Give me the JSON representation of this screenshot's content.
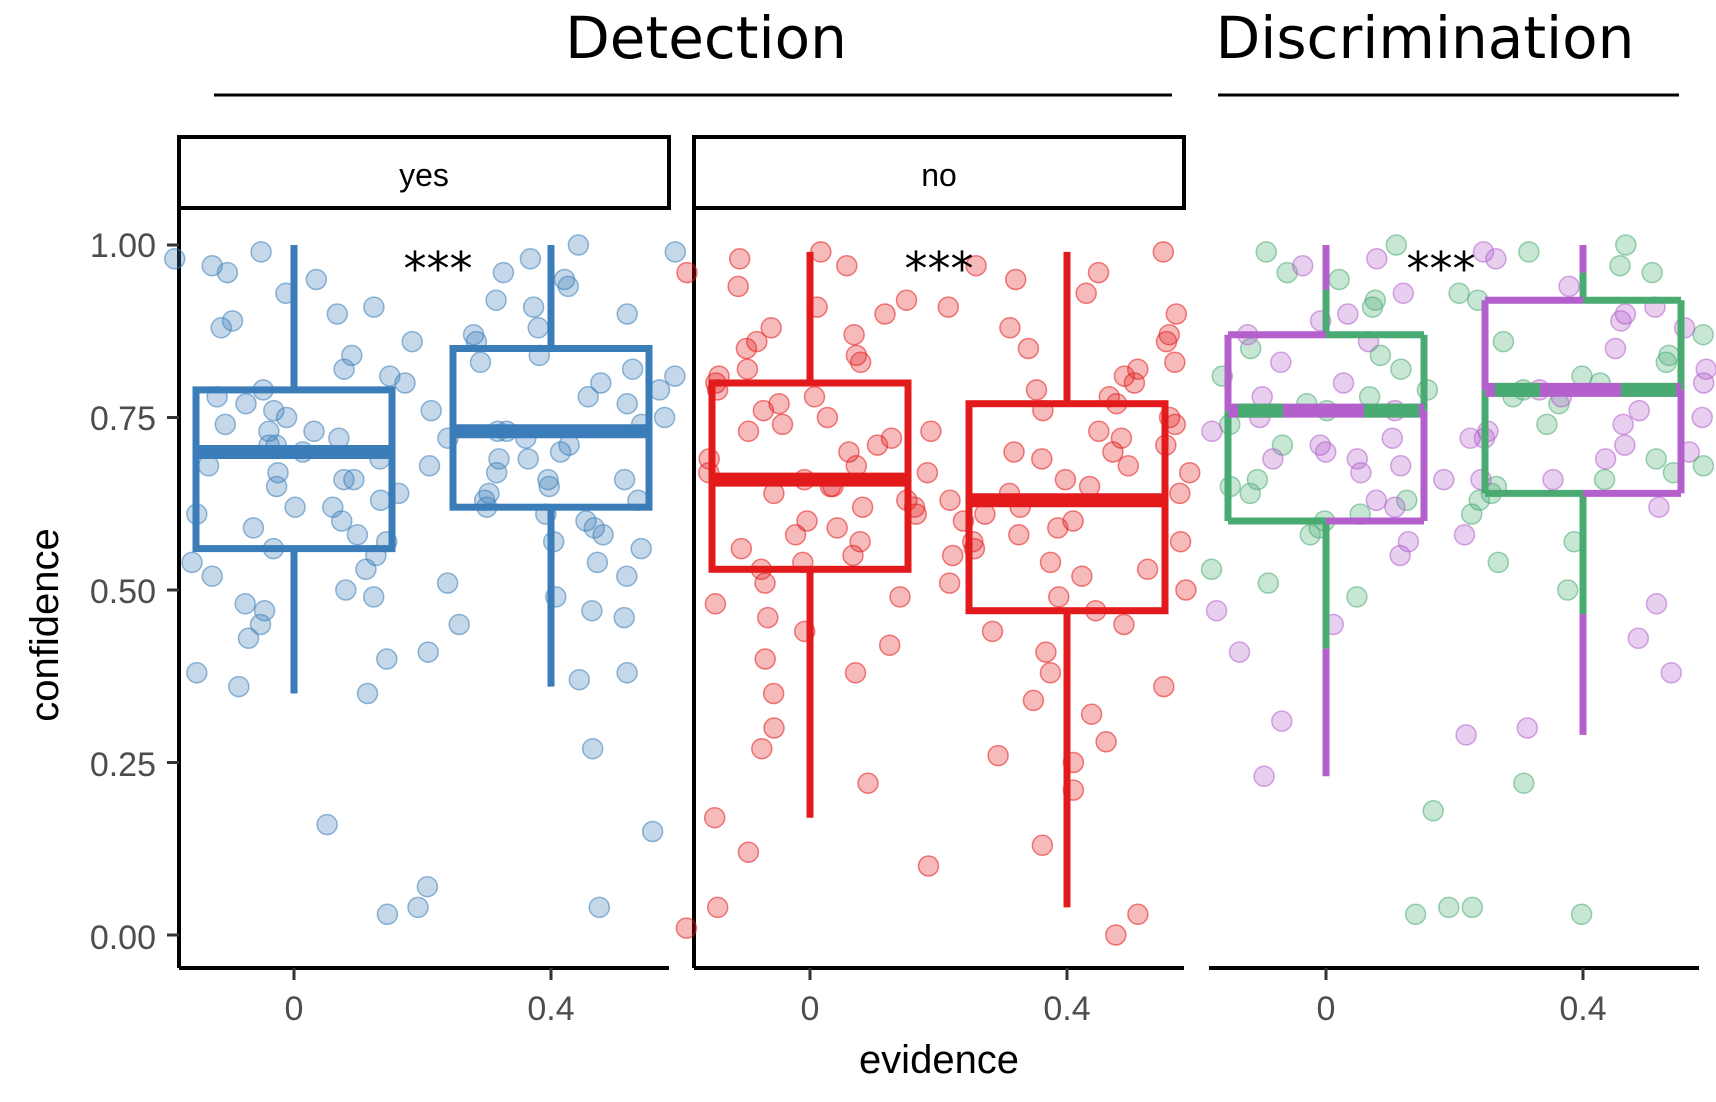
{
  "headers": {
    "detection": "Detection",
    "discrimination": "Discrimination"
  },
  "axes": {
    "y_title": "confidence",
    "x_title": "evidence",
    "y_ticks": [
      "0.00",
      "0.25",
      "0.50",
      "0.75",
      "1.00"
    ],
    "x_ticks": [
      "0",
      "0.4"
    ]
  },
  "colors": {
    "yes": "#3a7db8",
    "no": "#e31a1c",
    "disc_green": "#4aab72",
    "disc_purple": "#b35fcc"
  },
  "chart_data": {
    "type": "box",
    "ylim": [
      0,
      1
    ],
    "grid": false,
    "significance": "***",
    "panels": [
      {
        "group": "Detection",
        "strip": "yes",
        "color_key": "yes",
        "significance": "***",
        "boxes": [
          {
            "x": "0",
            "q1": 0.56,
            "median": 0.7,
            "q3": 0.79,
            "whisker_low": 0.35,
            "whisker_high": 1.0
          },
          {
            "x": "0.4",
            "q1": 0.62,
            "median": 0.73,
            "q3": 0.85,
            "whisker_low": 0.36,
            "whisker_high": 1.0
          }
        ],
        "points": [
          [
            0.62,
            0.48,
            0.16,
            0.04,
            0.72,
            0.9,
            0.97,
            0.81,
            0.5,
            0.55,
            0.66,
            0.59,
            0.35,
            0.78,
            0.73,
            0.96,
            0.88,
            0.53,
            0.4,
            0.69,
            0.61,
            0.75,
            0.84,
            0.45,
            0.36,
            0.99,
            0.64,
            0.57,
            0.76,
            0.71,
            0.91,
            0.52,
            0.68,
            0.43,
            0.79,
            0.62,
            0.86,
            0.93,
            0.58,
            0.74,
            0.67,
            0.03,
            0.49,
            0.77,
            0.7,
            0.63,
            0.82,
            0.38,
            0.95,
            0.54,
            0.6,
            0.73,
            0.66,
            0.89,
            0.47,
            0.71,
            0.56,
            0.8,
            0.65,
            0.98
          ],
          [
            0.64,
            0.45,
            0.27,
            0.07,
            0.73,
            0.92,
            0.98,
            0.83,
            0.52,
            0.61,
            0.7,
            0.63,
            0.37,
            0.8,
            0.76,
            0.95,
            0.88,
            0.57,
            0.47,
            0.69,
            0.66,
            0.75,
            0.86,
            0.49,
            0.15,
            1.0,
            0.68,
            0.6,
            0.78,
            0.72,
            0.9,
            0.54,
            0.67,
            0.46,
            0.81,
            0.65,
            0.87,
            0.94,
            0.59,
            0.74,
            0.71,
            0.04,
            0.51,
            0.79,
            0.72,
            0.62,
            0.84,
            0.38,
            0.96,
            0.56,
            0.63,
            0.77,
            0.69,
            0.91,
            0.41,
            0.73,
            0.58,
            0.82,
            0.66,
            0.99
          ]
        ]
      },
      {
        "group": "Detection",
        "strip": "no",
        "color_key": "no",
        "significance": "***",
        "boxes": [
          {
            "x": "0",
            "q1": 0.53,
            "median": 0.66,
            "q3": 0.8,
            "whisker_low": 0.17,
            "whisker_high": 0.99
          },
          {
            "x": "0.4",
            "q1": 0.47,
            "median": 0.63,
            "q3": 0.77,
            "whisker_low": 0.04,
            "whisker_high": 0.99
          }
        ],
        "points": [
          [
            0.65,
            0.49,
            0.27,
            0.01,
            0.73,
            0.91,
            0.97,
            0.84,
            0.55,
            0.6,
            0.7,
            0.62,
            0.38,
            0.79,
            0.75,
            0.94,
            0.87,
            0.58,
            0.4,
            0.68,
            0.64,
            0.77,
            0.85,
            0.46,
            0.17,
            0.99,
            0.67,
            0.57,
            0.78,
            0.72,
            0.9,
            0.51,
            0.66,
            0.44,
            0.81,
            0.63,
            0.88,
            0.96,
            0.59,
            0.74,
            0.69,
            0.04,
            0.48,
            0.8,
            0.71,
            0.62,
            0.83,
            0.35,
            0.98,
            0.54,
            0.61,
            0.76,
            0.67,
            0.92,
            0.3,
            0.73,
            0.56,
            0.82,
            0.65,
            0.1,
            0.12,
            0.22,
            0.53,
            0.42,
            0.86
          ],
          [
            0.6,
            0.45,
            0.25,
            0.0,
            0.7,
            0.88,
            0.97,
            0.8,
            0.51,
            0.56,
            0.66,
            0.59,
            0.34,
            0.77,
            0.73,
            0.93,
            0.85,
            0.54,
            0.38,
            0.65,
            0.62,
            0.74,
            0.83,
            0.47,
            0.13,
            0.99,
            0.64,
            0.55,
            0.76,
            0.69,
            0.9,
            0.5,
            0.63,
            0.41,
            0.79,
            0.61,
            0.86,
            0.95,
            0.57,
            0.72,
            0.67,
            0.03,
            0.49,
            0.78,
            0.71,
            0.58,
            0.82,
            0.32,
            0.96,
            0.52,
            0.6,
            0.75,
            0.68,
            0.91,
            0.28,
            0.7,
            0.53,
            0.81,
            0.64,
            0.21,
            0.36,
            0.44,
            0.57,
            0.26,
            0.87
          ]
        ]
      },
      {
        "group": "Discrimination",
        "strip": "",
        "color_key": "disc",
        "significance": "***",
        "boxes": [
          {
            "x": "0",
            "q1": 0.6,
            "median": 0.76,
            "q3": 0.87,
            "whisker_low": 0.23,
            "whisker_high": 1.0
          },
          {
            "x": "0.4",
            "q1": 0.64,
            "median": 0.79,
            "q3": 0.92,
            "whisker_low": 0.29,
            "whisker_high": 1.0
          }
        ],
        "points": [
          [
            0.68,
            0.51,
            0.31,
            0.03,
            0.76,
            0.92,
            0.98,
            0.85,
            0.57,
            0.63,
            0.72,
            0.66,
            0.41,
            0.81,
            0.78,
            0.96,
            0.89,
            0.6,
            0.47,
            0.71,
            0.69,
            0.79,
            0.87,
            0.53,
            0.23,
            1.0,
            0.7,
            0.61,
            0.8,
            0.74,
            0.93,
            0.58,
            0.67,
            0.49,
            0.83,
            0.65,
            0.9,
            0.95,
            0.62,
            0.77,
            0.73,
            0.04,
            0.55,
            0.82,
            0.75,
            0.64,
            0.86,
            0.18,
            0.97,
            0.59,
            0.66,
            0.78,
            0.71,
            0.91,
            0.45,
            0.76,
            0.63,
            0.84,
            0.69,
            0.99
          ],
          [
            0.72,
            0.54,
            0.38,
            0.03,
            0.79,
            0.93,
            0.99,
            0.87,
            0.62,
            0.66,
            0.75,
            0.69,
            0.43,
            0.83,
            0.8,
            0.97,
            0.9,
            0.64,
            0.48,
            0.74,
            0.71,
            0.81,
            0.88,
            0.57,
            0.29,
            1.0,
            0.73,
            0.65,
            0.82,
            0.77,
            0.94,
            0.61,
            0.7,
            0.5,
            0.85,
            0.68,
            0.91,
            0.96,
            0.66,
            0.78,
            0.76,
            0.04,
            0.58,
            0.84,
            0.78,
            0.67,
            0.89,
            0.22,
            0.98,
            0.63,
            0.69,
            0.8,
            0.74,
            0.92,
            0.3,
            0.79,
            0.66,
            0.86,
            0.72,
            0.99
          ]
        ]
      }
    ]
  }
}
